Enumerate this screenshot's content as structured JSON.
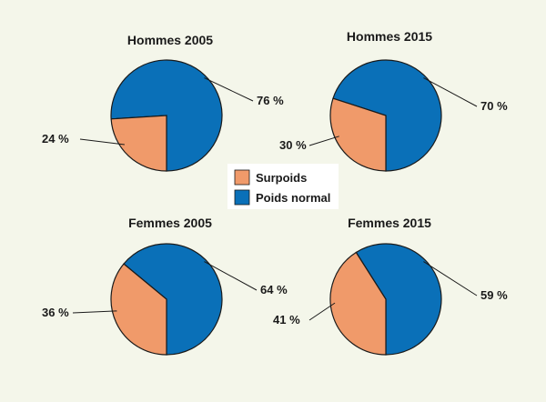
{
  "chart_data": [
    {
      "type": "pie",
      "title": "Hommes 2005",
      "slices": [
        {
          "name": "Surpoids",
          "value": 24,
          "label": "24 %"
        },
        {
          "name": "Poids normal",
          "value": 76,
          "label": "76 %"
        }
      ]
    },
    {
      "type": "pie",
      "title": "Hommes 2015",
      "slices": [
        {
          "name": "Surpoids",
          "value": 30,
          "label": "30 %"
        },
        {
          "name": "Poids normal",
          "value": 70,
          "label": "70 %"
        }
      ]
    },
    {
      "type": "pie",
      "title": "Femmes 2005",
      "slices": [
        {
          "name": "Surpoids",
          "value": 36,
          "label": "36 %"
        },
        {
          "name": "Poids normal",
          "value": 64,
          "label": "64 %"
        }
      ]
    },
    {
      "type": "pie",
      "title": "Femmes 2015",
      "slices": [
        {
          "name": "Surpoids",
          "value": 41,
          "label": "41 %"
        },
        {
          "name": "Poids normal",
          "value": 59,
          "label": "59 %"
        }
      ]
    }
  ],
  "legend": {
    "placement": "center",
    "items": [
      {
        "name": "Surpoids",
        "color": "#f09a6a"
      },
      {
        "name": "Poids normal",
        "color": "#0a70b8"
      }
    ]
  },
  "colors": {
    "Surpoids": "#f09a6a",
    "Poids normal": "#0a70b8",
    "background": "#f4f6ea"
  }
}
